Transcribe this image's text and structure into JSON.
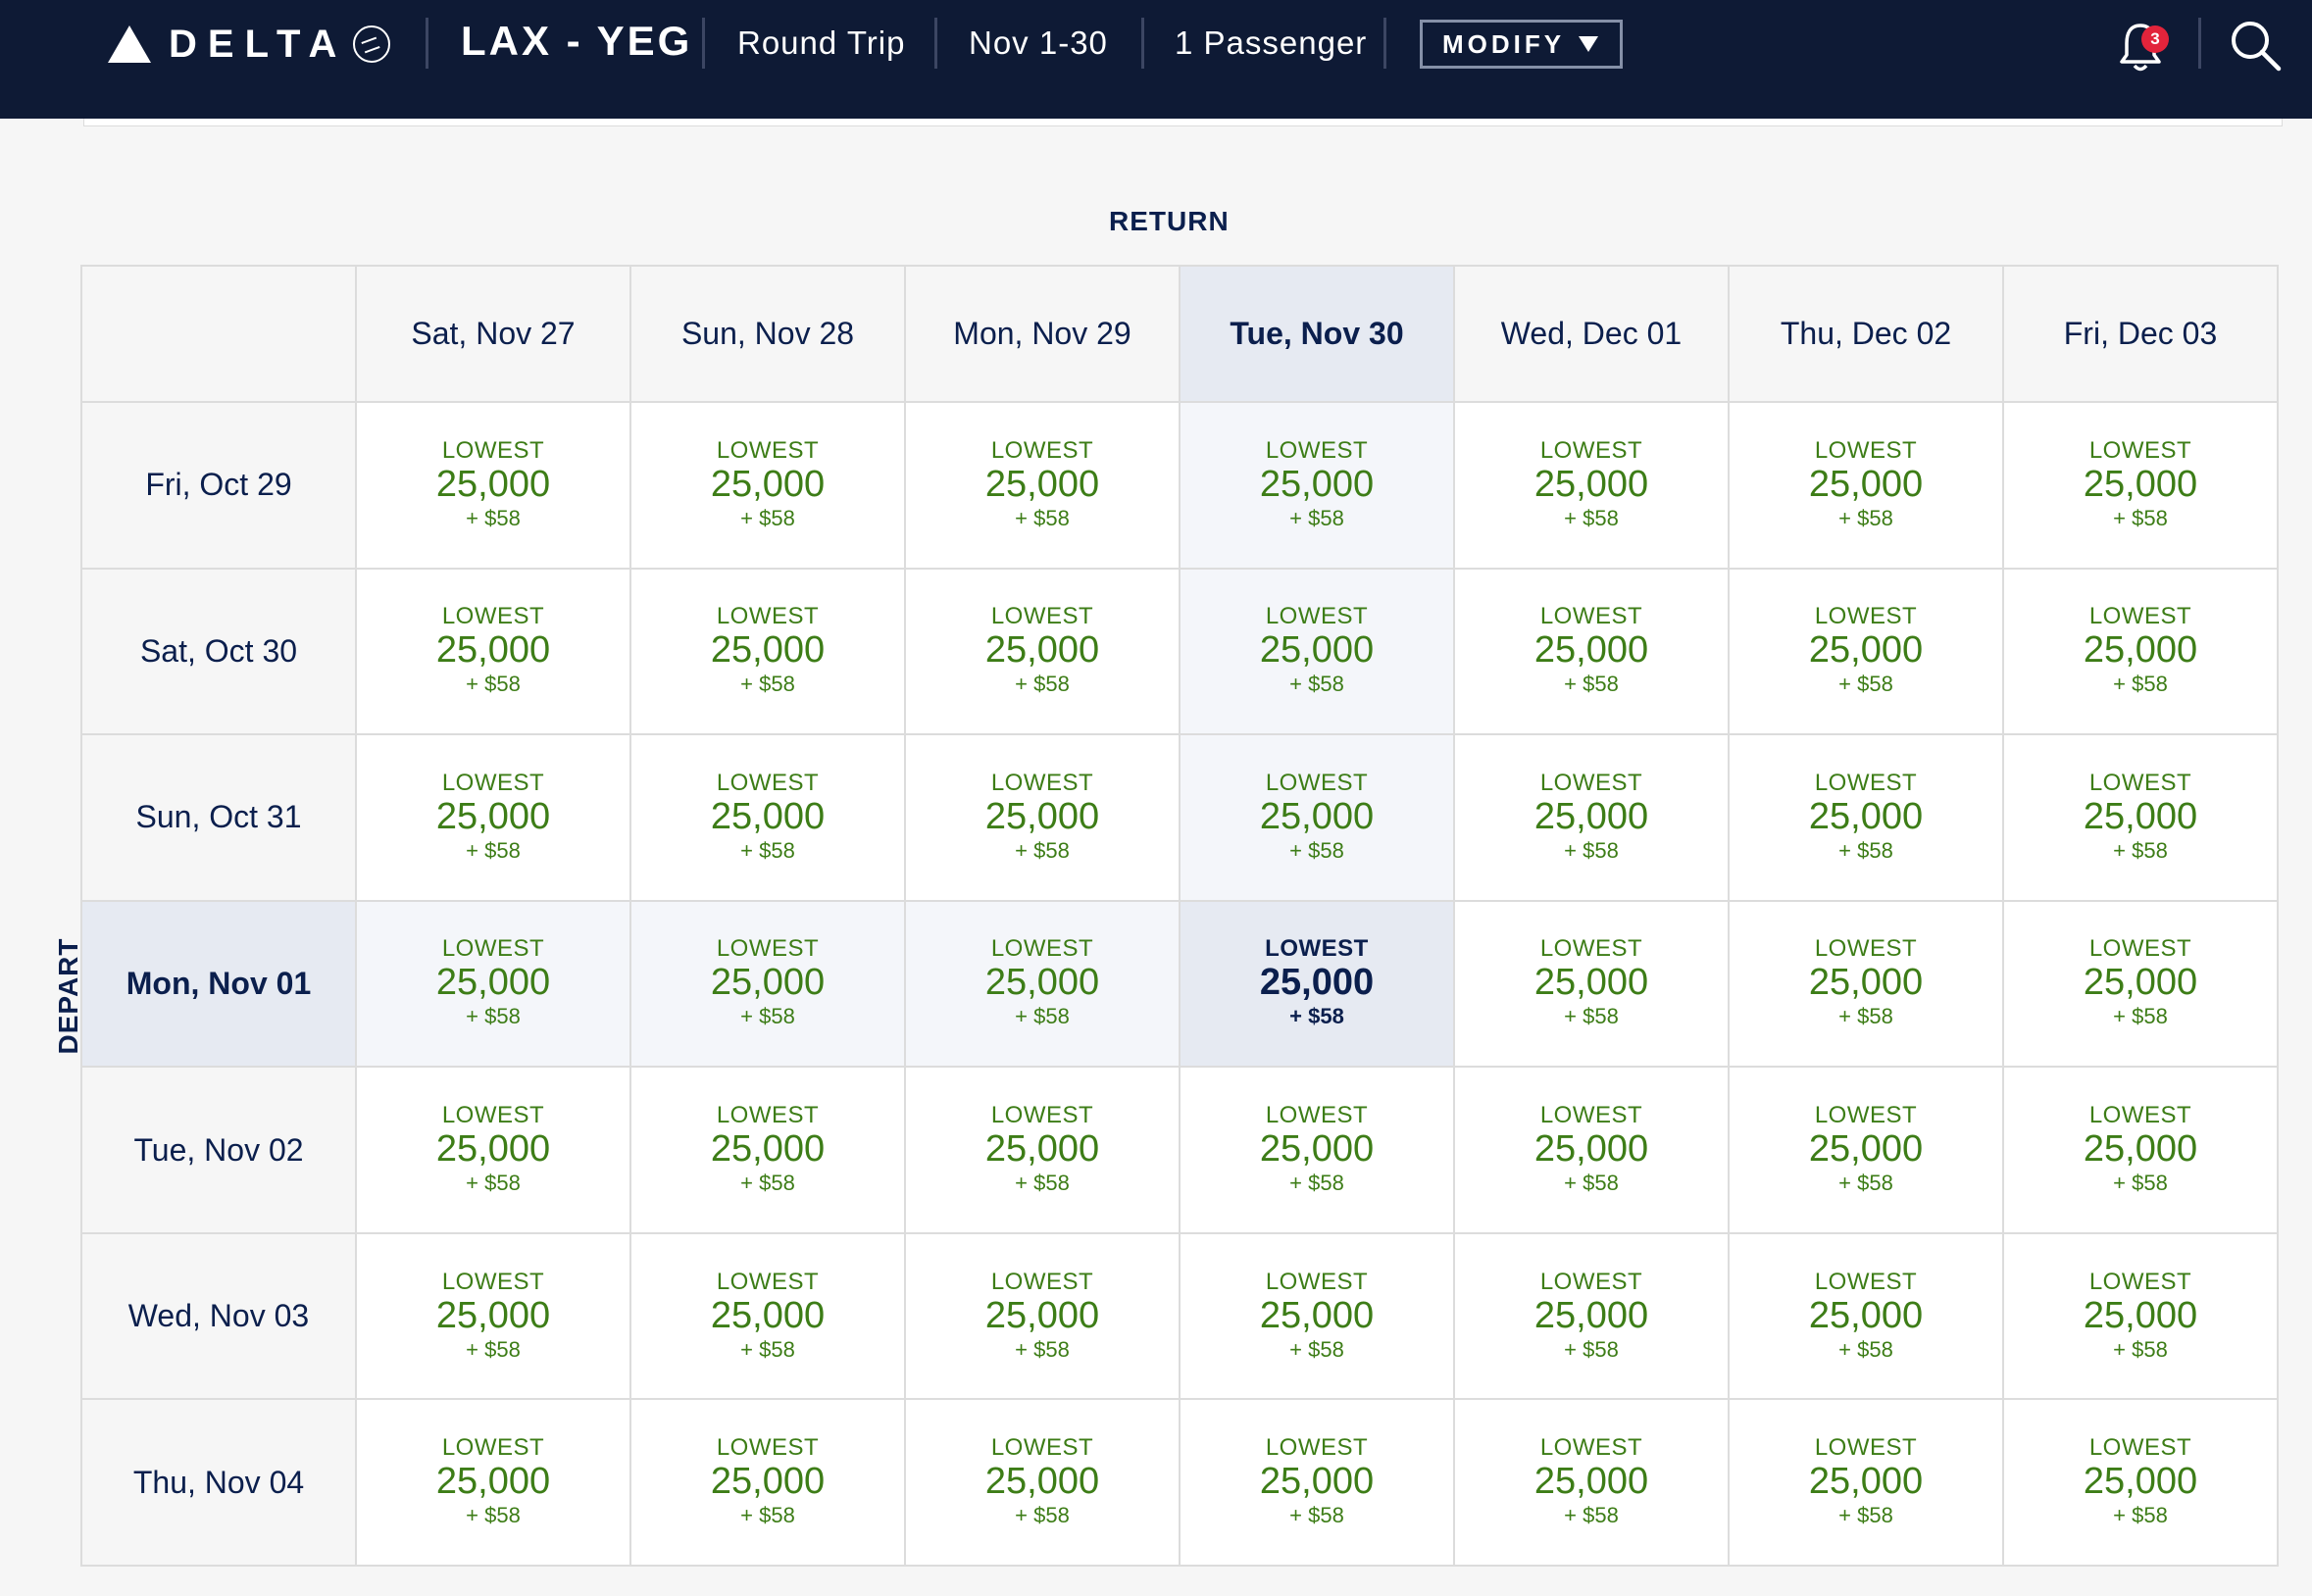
{
  "header": {
    "brand": "DELTA",
    "route": "LAX - YEG",
    "trip_type": "Round Trip",
    "dates": "Nov 1-30",
    "passengers": "1 Passenger",
    "modify_label": "MODIFY",
    "notification_count": "3"
  },
  "grid": {
    "return_label": "RETURN",
    "depart_label": "DEPART",
    "return_dates": [
      "Sat, Nov 27",
      "Sun, Nov 28",
      "Mon, Nov 29",
      "Tue, Nov 30",
      "Wed, Dec 01",
      "Thu, Dec 02",
      "Fri, Dec 03"
    ],
    "depart_dates": [
      "Fri, Oct 29",
      "Sat, Oct 30",
      "Sun, Oct 31",
      "Mon, Nov 01",
      "Tue, Nov 02",
      "Wed, Nov 03",
      "Thu, Nov 04"
    ],
    "selected_return_index": 3,
    "selected_depart_index": 3,
    "fare": {
      "label": "LOWEST",
      "miles": "25,000",
      "tax": "+ $58"
    }
  },
  "colors": {
    "header_bg": "#0e1a35",
    "fare_green": "#3d7d17",
    "navy": "#0b1f4d",
    "badge_red": "#e2243b"
  }
}
